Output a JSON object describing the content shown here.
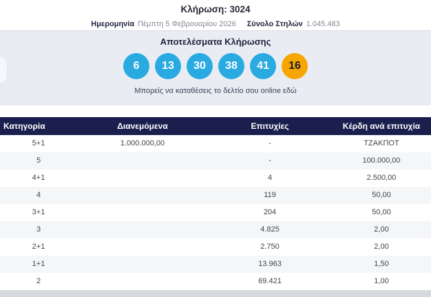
{
  "header": {
    "title": "Κλήρωση: 3024",
    "date_label": "Ημερομηνία",
    "date_value": "Πέμπτη 5 Φεβρουαρίου 2026",
    "columns_label": "Σύνολο Στηλών",
    "columns_value": "1.045.483"
  },
  "results": {
    "heading": "Αποτελέσματα Κλήρωσης",
    "numbers": [
      {
        "value": "6",
        "type": "main"
      },
      {
        "value": "13",
        "type": "main"
      },
      {
        "value": "30",
        "type": "main"
      },
      {
        "value": "38",
        "type": "main"
      },
      {
        "value": "41",
        "type": "main"
      },
      {
        "value": "16",
        "type": "bonus"
      }
    ],
    "deposit_link_text": "Μπορείς να καταθέσεις το δελτίο σου online εδώ"
  },
  "table": {
    "headers": [
      "Κατηγορία",
      "Διανεμόμενα",
      "Επιτυχίες",
      "Κέρδη ανά επιτυχία"
    ],
    "rows": [
      {
        "category": "5+1",
        "distributed": "1.000.000,00",
        "winners": "-",
        "prize": "ΤΖΑΚΠΟΤ"
      },
      {
        "category": "5",
        "distributed": "",
        "winners": "-",
        "prize": "100.000,00"
      },
      {
        "category": "4+1",
        "distributed": "",
        "winners": "4",
        "prize": "2.500,00"
      },
      {
        "category": "4",
        "distributed": "",
        "winners": "119",
        "prize": "50,00"
      },
      {
        "category": "3+1",
        "distributed": "",
        "winners": "204",
        "prize": "50,00"
      },
      {
        "category": "3",
        "distributed": "",
        "winners": "4.825",
        "prize": "2,00"
      },
      {
        "category": "2+1",
        "distributed": "",
        "winners": "2.750",
        "prize": "2,00"
      },
      {
        "category": "1+1",
        "distributed": "",
        "winners": "13.963",
        "prize": "1,50"
      },
      {
        "category": "2",
        "distributed": "",
        "winners": "69.421",
        "prize": "1,00"
      }
    ]
  },
  "colors": {
    "ball_main": "#29abe2",
    "ball_bonus": "#f7a600",
    "ball_main_text": "#ffffff",
    "ball_bonus_text": "#1d1d2e",
    "table_header_bg": "#1b1f4e",
    "panel_bg": "#e9edf3",
    "row_stripe": "#f4f6f8"
  }
}
